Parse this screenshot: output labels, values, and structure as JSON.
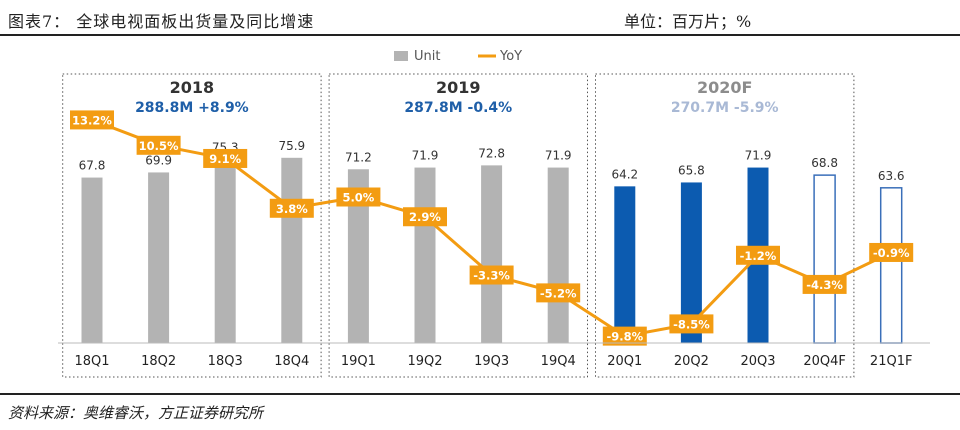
{
  "figure_title": "图表7：  全球电视面板出货量及同比增速",
  "unit_note": "单位：百万片；%",
  "source": "资料来源：奥维睿沃，方正证券研究所",
  "colors": {
    "bar_gray": "#b3b3b3",
    "bar_blue": "#0c5bb0",
    "bar_forecast_border": "#3a6fb9",
    "line_orange": "#f39c12",
    "year_title": "#333333",
    "stat_blue": "#1f5fa8",
    "stat_light": "#a9b9d5",
    "year_light": "#8c8c8c"
  },
  "chart_data": {
    "type": "bar",
    "title": "全球电视面板出货量及同比增速",
    "xlabel": "",
    "ylabel": "",
    "categories": [
      "18Q1",
      "18Q2",
      "18Q3",
      "18Q4",
      "19Q1",
      "19Q2",
      "19Q3",
      "19Q4",
      "20Q1",
      "20Q2",
      "20Q3",
      "20Q4F",
      "21Q1F"
    ],
    "series": [
      {
        "name": "Unit",
        "kind": "bar",
        "values": [
          67.8,
          69.9,
          75.3,
          75.9,
          71.2,
          71.9,
          72.8,
          71.9,
          64.2,
          65.8,
          71.9,
          68.8,
          63.6
        ],
        "styles": [
          "gray",
          "gray",
          "gray",
          "gray",
          "gray",
          "gray",
          "gray",
          "gray",
          "blue",
          "blue",
          "blue",
          "outline",
          "outline"
        ]
      },
      {
        "name": "YoY",
        "kind": "line",
        "values": [
          13.2,
          10.5,
          9.1,
          3.8,
          5.0,
          2.9,
          -3.3,
          -5.2,
          -9.8,
          -8.5,
          -1.2,
          -4.3,
          -0.9
        ],
        "labels": [
          "13.2%",
          "10.5%",
          "9.1%",
          "3.8%",
          "5.0%",
          "2.9%",
          "-3.3%",
          "-5.2%",
          "-9.8%",
          "-8.5%",
          "-1.2%",
          "-4.3%",
          "-0.9%"
        ]
      }
    ],
    "legend": [
      "Unit",
      "YoY"
    ],
    "legend_position": "top-center",
    "groups": [
      {
        "year": "2018",
        "total": "288.8M",
        "growth": "+8.9%",
        "stat_style": "blue"
      },
      {
        "year": "2019",
        "total": "287.8M",
        "growth": "-0.4%",
        "stat_style": "blue"
      },
      {
        "year": "2020F",
        "total": "270.7M",
        "growth": "-5.9%",
        "stat_style": "light"
      }
    ],
    "grid": false
  }
}
